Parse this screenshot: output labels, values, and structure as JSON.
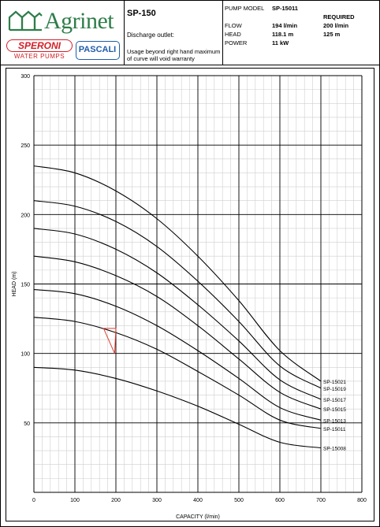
{
  "header": {
    "brand": "Agrinet",
    "brand2": "SPERONI",
    "brand2_sub": "WATER PUMPS",
    "brand3": "PASCALI",
    "model": "SP-150",
    "discharge_label": "Discharge outlet:",
    "warning": "Usage beyond right hand maximum of curve will void warranty"
  },
  "specs": {
    "pump_model_label": "PUMP MODEL",
    "pump_model_value": "SP-15011",
    "required_label": "REQUIRED",
    "flow_label": "FLOW",
    "flow_value": "194 l/min",
    "flow_required": "200 l/min",
    "head_label": "HEAD",
    "head_value": "118.1 m",
    "head_required": "125 m",
    "power_label": "POWER",
    "power_value": "11 kW"
  },
  "colors": {
    "agrinet_green": "#2e7d4a",
    "speroni_red": "#d32027",
    "pascali_blue": "#1f5da8",
    "marker_red": "#e03a2e"
  },
  "chart_data": {
    "type": "line",
    "xlabel": "CAPACITY (l/min)",
    "ylabel": "HEAD (m)",
    "xlim": [
      0,
      800
    ],
    "ylim": [
      0,
      300
    ],
    "x_ticks": [
      0,
      100,
      200,
      300,
      400,
      500,
      600,
      700,
      800
    ],
    "y_ticks": [
      50,
      100,
      150,
      200,
      250,
      300
    ],
    "grid": true,
    "series": [
      {
        "name": "SP-15021",
        "x": [
          0,
          100,
          200,
          300,
          400,
          500,
          600,
          700
        ],
        "y": [
          235,
          230,
          217,
          197,
          170,
          138,
          102,
          80
        ]
      },
      {
        "name": "SP-15019",
        "x": [
          0,
          100,
          200,
          300,
          400,
          500,
          600,
          700
        ],
        "y": [
          210,
          206,
          195,
          177,
          152,
          123,
          91,
          75
        ]
      },
      {
        "name": "SP-15017",
        "x": [
          0,
          100,
          200,
          300,
          400,
          500,
          600,
          700
        ],
        "y": [
          190,
          186,
          175,
          158,
          135,
          109,
          81,
          67
        ]
      },
      {
        "name": "SP-15015",
        "x": [
          0,
          100,
          200,
          300,
          400,
          500,
          600,
          700
        ],
        "y": [
          170,
          166,
          156,
          141,
          120,
          96,
          72,
          60
        ]
      },
      {
        "name": "SP-15013",
        "x": [
          0,
          100,
          200,
          300,
          400,
          500,
          600,
          700
        ],
        "y": [
          146,
          143,
          134,
          120,
          102,
          82,
          61,
          52
        ]
      },
      {
        "name": "SP-15011",
        "x": [
          0,
          100,
          200,
          300,
          400,
          500,
          600,
          700
        ],
        "y": [
          126,
          123,
          115,
          103,
          87,
          70,
          52,
          46
        ]
      },
      {
        "name": "SP-15008",
        "x": [
          0,
          100,
          200,
          300,
          400,
          500,
          600,
          700
        ],
        "y": [
          90,
          88,
          82,
          73,
          62,
          49,
          36,
          32
        ]
      }
    ],
    "marker": {
      "x": [
        170,
        200,
        197
      ],
      "y": [
        118,
        118,
        100
      ]
    }
  }
}
